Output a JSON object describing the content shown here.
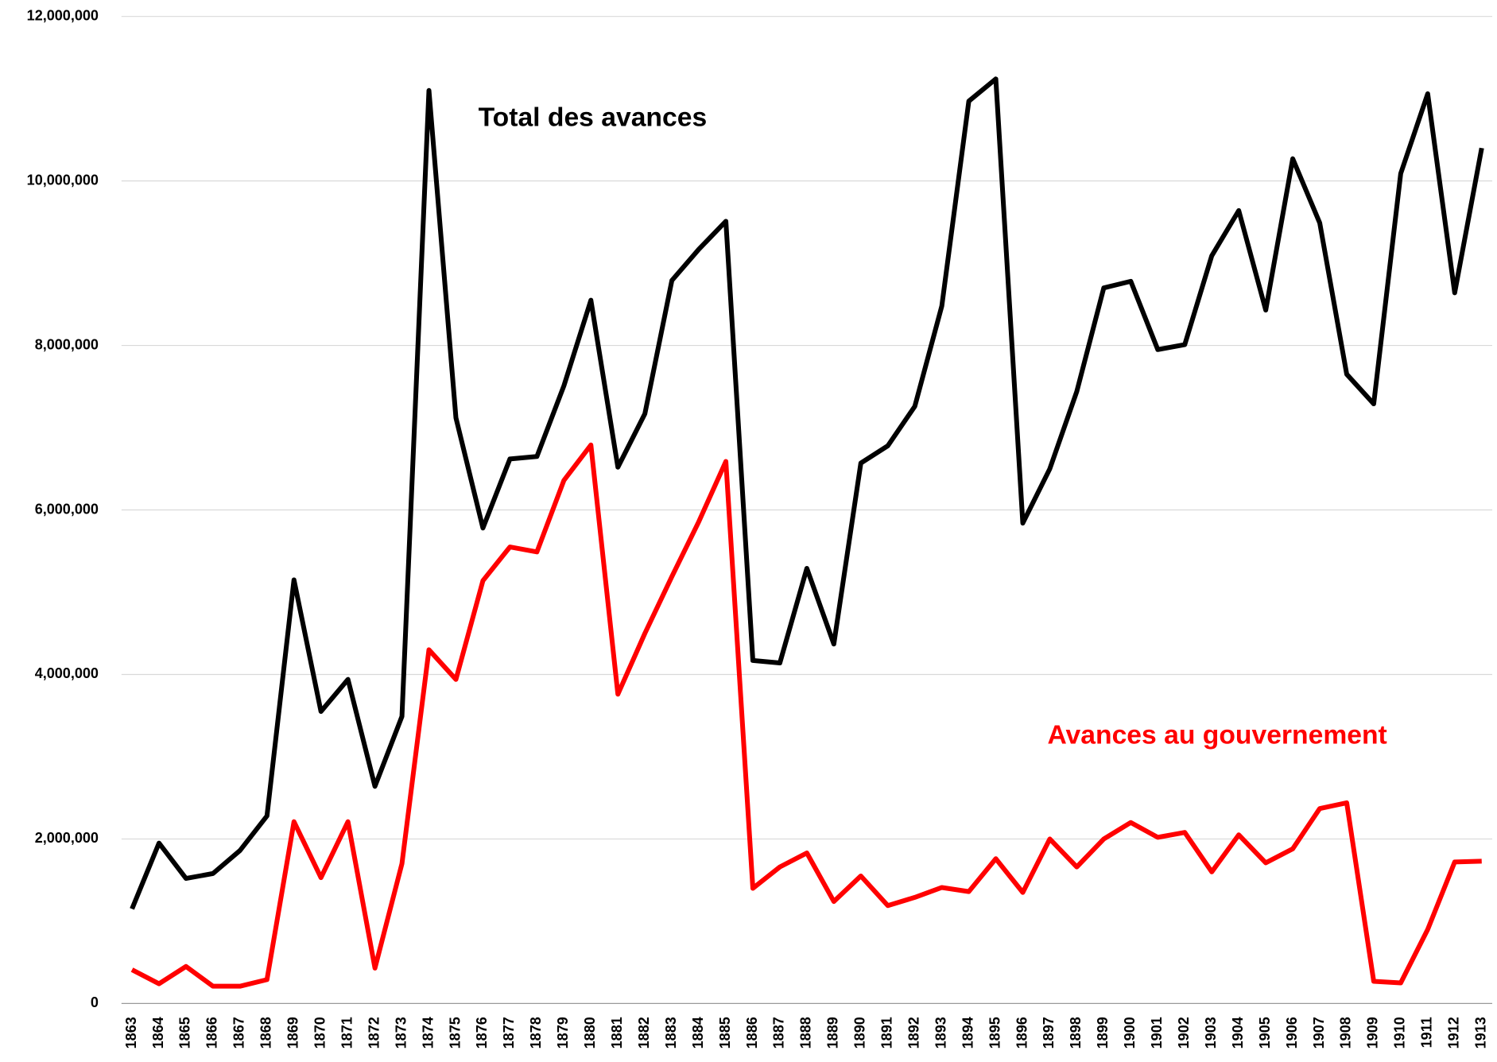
{
  "chart_data": {
    "type": "line",
    "categories": [
      "1863",
      "1864",
      "1865",
      "1866",
      "1867",
      "1868",
      "1869",
      "1870",
      "1871",
      "1872",
      "1873",
      "1874",
      "1875",
      "1876",
      "1877",
      "1878",
      "1879",
      "1880",
      "1881",
      "1882",
      "1883",
      "1884",
      "1885",
      "1886",
      "1887",
      "1888",
      "1889",
      "1890",
      "1891",
      "1892",
      "1893",
      "1894",
      "1895",
      "1896",
      "1897",
      "1898",
      "1899",
      "1900",
      "1901",
      "1902",
      "1903",
      "1904",
      "1905",
      "1906",
      "1907",
      "1908",
      "1909",
      "1910",
      "1911",
      "1912",
      "1913"
    ],
    "series": [
      {
        "name": "Total des avances",
        "color": "#000000",
        "values": [
          1150000,
          1950000,
          1520000,
          1580000,
          1860000,
          2280000,
          5150000,
          3550000,
          3940000,
          2640000,
          3490000,
          11100000,
          7120000,
          5780000,
          6620000,
          6650000,
          7510000,
          8550000,
          6520000,
          7170000,
          8790000,
          9170000,
          9510000,
          4170000,
          4140000,
          5290000,
          4370000,
          6570000,
          6780000,
          7260000,
          8480000,
          10970000,
          11240000,
          5840000,
          6500000,
          7440000,
          8700000,
          8780000,
          7950000,
          8010000,
          9090000,
          9640000,
          8430000,
          10270000,
          9490000,
          7650000,
          7290000,
          10090000,
          11060000,
          8640000,
          10400000
        ]
      },
      {
        "name": "Avances au gouvernement",
        "color": "#ff0000",
        "values": [
          410000,
          240000,
          450000,
          210000,
          210000,
          290000,
          2210000,
          1530000,
          2210000,
          430000,
          1700000,
          4300000,
          3940000,
          5140000,
          5550000,
          5490000,
          6360000,
          6790000,
          3760000,
          4500000,
          5190000,
          5860000,
          6590000,
          1400000,
          1660000,
          1830000,
          1240000,
          1550000,
          1190000,
          1290000,
          1410000,
          1360000,
          1760000,
          1350000,
          2000000,
          1660000,
          2000000,
          2200000,
          2020000,
          2080000,
          1600000,
          2050000,
          1710000,
          1880000,
          2370000,
          2440000,
          270000,
          250000,
          900000,
          1720000,
          1730000
        ]
      }
    ],
    "ylim": [
      0,
      12000000
    ],
    "yticks": [
      0,
      {
        "value": 2000000,
        "label": "2,000,000"
      },
      {
        "value": 4000000,
        "label": "4,000,000"
      },
      {
        "value": 6000000,
        "label": "6,000,000"
      },
      {
        "value": 8000000,
        "label": "8,000,000"
      },
      {
        "value": 10000000,
        "label": "10,000,000"
      },
      {
        "value": 12000000,
        "label": "12,000,000"
      }
    ],
    "grid": true
  }
}
